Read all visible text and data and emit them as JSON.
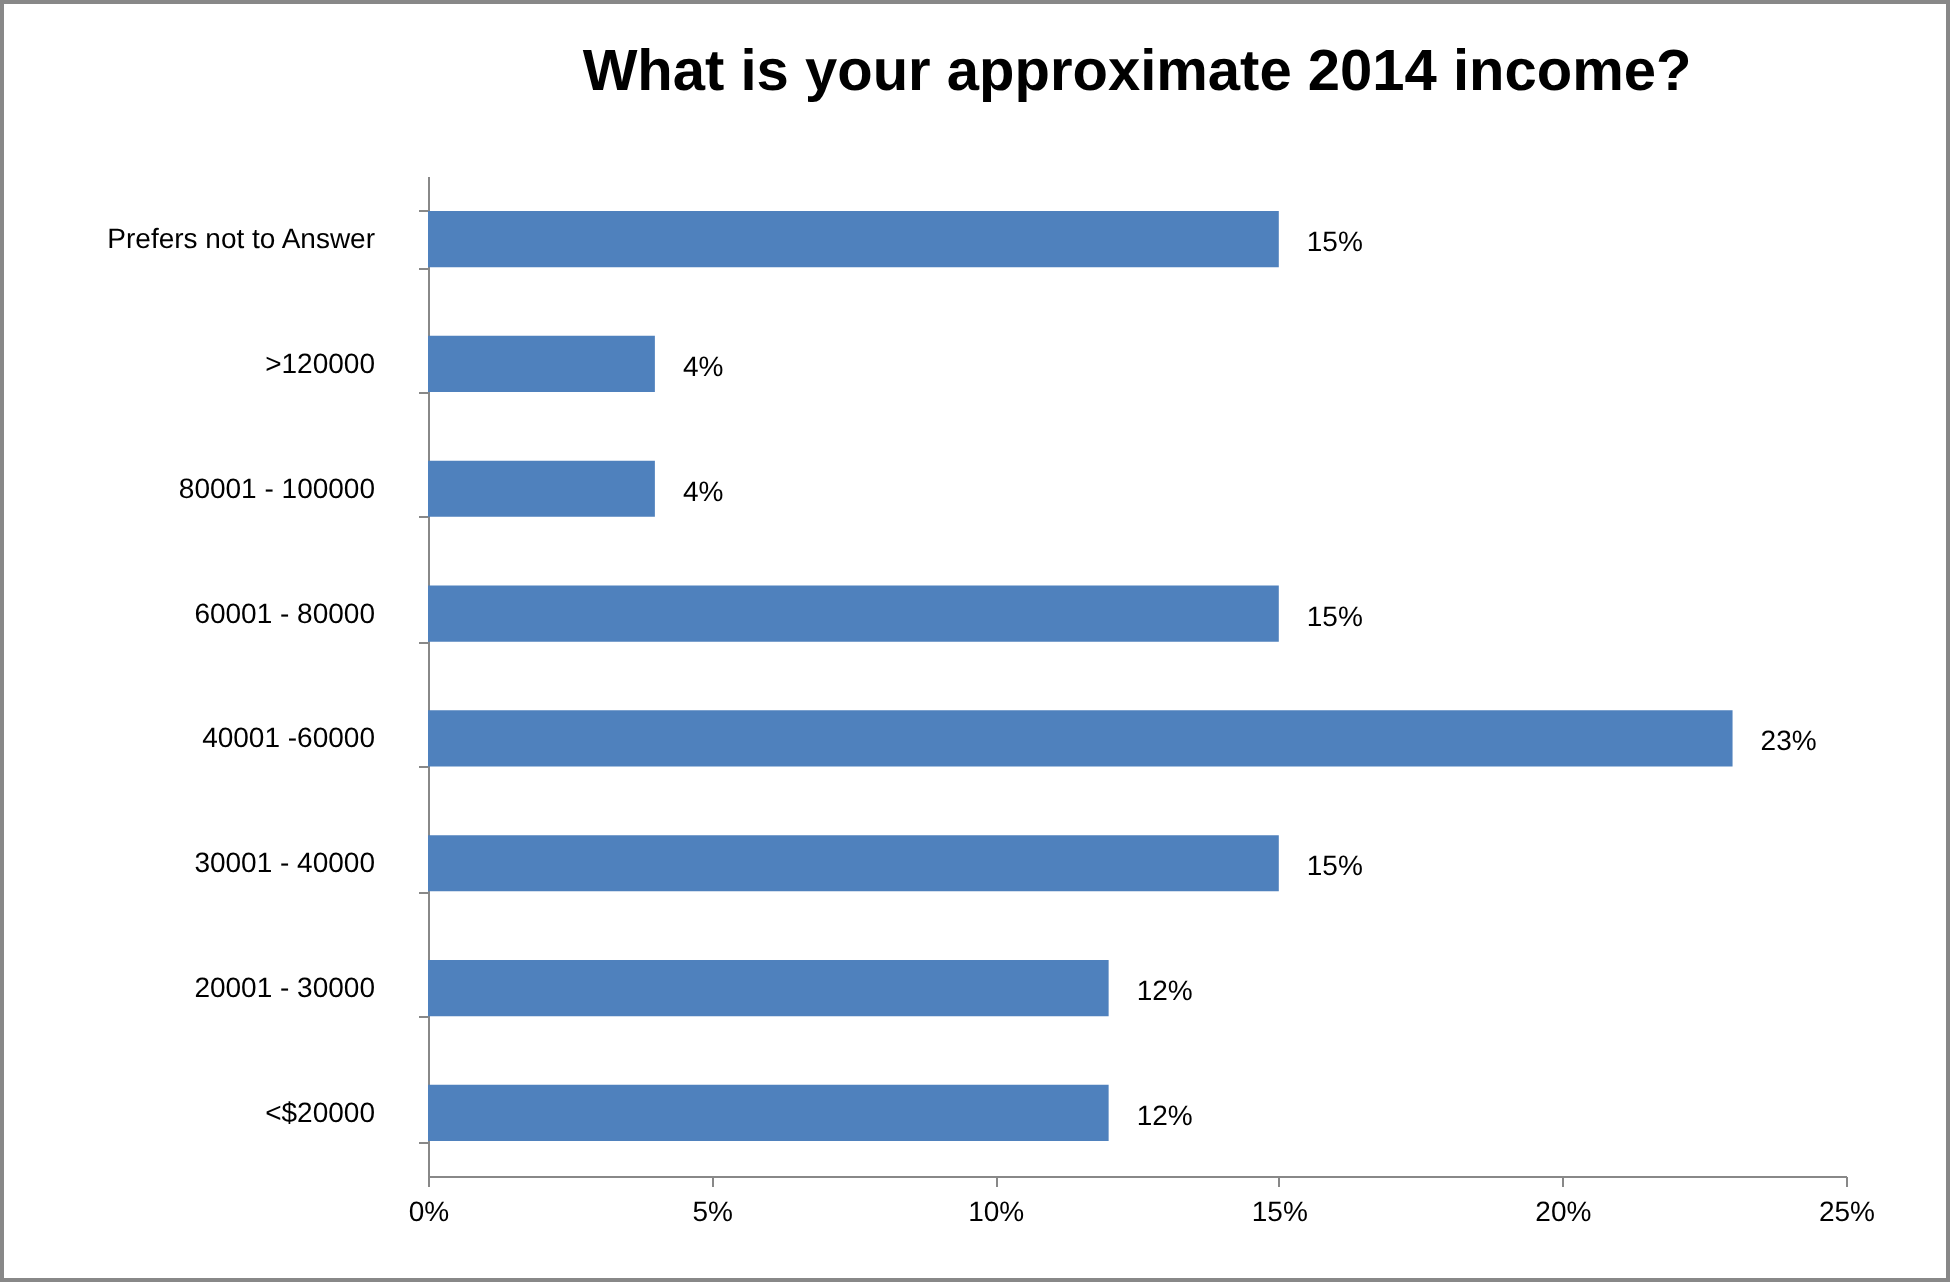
{
  "chart_data": {
    "type": "bar",
    "orientation": "horizontal",
    "title": "What is your approximate 2014 income?",
    "categories": [
      "Prefers not to Answer",
      ">120000",
      "80001 - 100000",
      "60001 - 80000",
      "40001 -60000",
      "30001 - 40000",
      "20001 - 30000",
      "<$20000"
    ],
    "values": [
      15,
      4,
      4,
      15,
      23,
      15,
      12,
      12
    ],
    "value_labels": [
      "15%",
      "4%",
      "4%",
      "15%",
      "23%",
      "15%",
      "12%",
      "12%"
    ],
    "color": "#4f81bd",
    "xlim": [
      0,
      25
    ],
    "xticks": [
      {
        "value": 0,
        "label": "0%"
      },
      {
        "value": 5,
        "label": "5%"
      },
      {
        "value": 10,
        "label": "10%"
      },
      {
        "value": 15,
        "label": "15%"
      },
      {
        "value": 20,
        "label": "20%"
      },
      {
        "value": 25,
        "label": "25%"
      }
    ],
    "grid": false
  }
}
